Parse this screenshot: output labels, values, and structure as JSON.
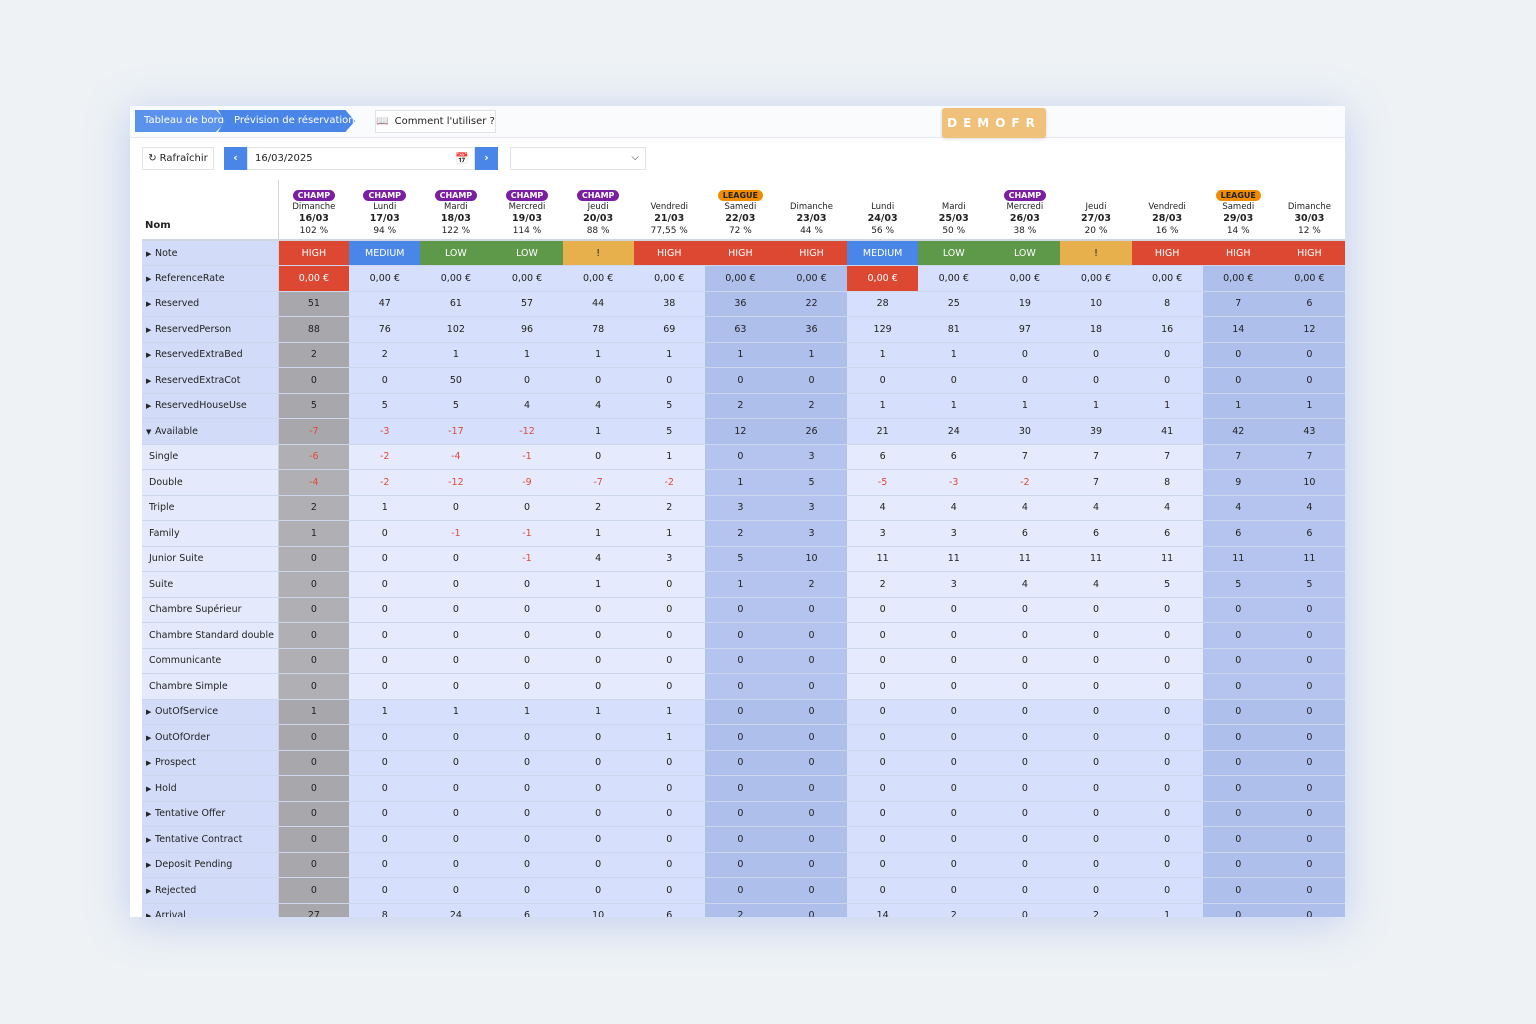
{
  "breadcrumb": [
    "Tableau de bord",
    "Prévision de réservation"
  ],
  "help_button": "Comment l'utiliser ?",
  "logo": "DEMOFR",
  "toolbar": {
    "refresh": "Rafraîchir",
    "date": "16/03/2025",
    "select_value": ""
  },
  "table": {
    "name_header": "Nom",
    "days": [
      {
        "badge": "CHAMP",
        "day": "Dimanche",
        "date": "16/03",
        "pct": "102 %",
        "note": "HIGH",
        "ref": "0,00 €"
      },
      {
        "badge": "CHAMP",
        "day": "Lundi",
        "date": "17/03",
        "pct": "94 %",
        "note": "MEDIUM",
        "ref": "0,00 €"
      },
      {
        "badge": "CHAMP",
        "day": "Mardi",
        "date": "18/03",
        "pct": "122 %",
        "note": "LOW",
        "ref": "0,00 €"
      },
      {
        "badge": "CHAMP",
        "day": "Mercredi",
        "date": "19/03",
        "pct": "114 %",
        "note": "LOW",
        "ref": "0,00 €"
      },
      {
        "badge": "CHAMP",
        "day": "Jeudi",
        "date": "20/03",
        "pct": "88 %",
        "note": "!",
        "ref": "0,00 €"
      },
      {
        "badge": "",
        "day": "Vendredi",
        "date": "21/03",
        "pct": "77,55 %",
        "note": "HIGH",
        "ref": "0,00 €"
      },
      {
        "badge": "LEAGUE",
        "day": "Samedi",
        "date": "22/03",
        "pct": "72 %",
        "note": "HIGH",
        "ref": "0,00 €"
      },
      {
        "badge": "",
        "day": "Dimanche",
        "date": "23/03",
        "pct": "44 %",
        "note": "HIGH",
        "ref": "0,00 €"
      },
      {
        "badge": "",
        "day": "Lundi",
        "date": "24/03",
        "pct": "56 %",
        "note": "MEDIUM",
        "ref": "0,00 €"
      },
      {
        "badge": "",
        "day": "Mardi",
        "date": "25/03",
        "pct": "50 %",
        "note": "LOW",
        "ref": "0,00 €"
      },
      {
        "badge": "CHAMP",
        "day": "Mercredi",
        "date": "26/03",
        "pct": "38 %",
        "note": "LOW",
        "ref": "0,00 €"
      },
      {
        "badge": "",
        "day": "Jeudi",
        "date": "27/03",
        "pct": "20 %",
        "note": "!",
        "ref": "0,00 €"
      },
      {
        "badge": "",
        "day": "Vendredi",
        "date": "28/03",
        "pct": "16 %",
        "note": "HIGH",
        "ref": "0,00 €"
      },
      {
        "badge": "LEAGUE",
        "day": "Samedi",
        "date": "29/03",
        "pct": "14 %",
        "note": "HIGH",
        "ref": "0,00 €"
      },
      {
        "badge": "",
        "day": "Dimanche",
        "date": "30/03",
        "pct": "12 %",
        "note": "HIGH",
        "ref": "0,00 €"
      }
    ],
    "rows": [
      {
        "name": "Note",
        "expander": "closed",
        "kind": "note"
      },
      {
        "name": "ReferenceRate",
        "expander": "closed",
        "kind": "ref"
      },
      {
        "name": "Reserved",
        "expander": "closed",
        "values": [
          51,
          47,
          61,
          57,
          44,
          38,
          36,
          22,
          28,
          25,
          19,
          10,
          8,
          7,
          6
        ]
      },
      {
        "name": "ReservedPerson",
        "expander": "closed",
        "values": [
          88,
          76,
          102,
          96,
          78,
          69,
          63,
          36,
          129,
          81,
          97,
          18,
          16,
          14,
          12
        ]
      },
      {
        "name": "ReservedExtraBed",
        "expander": "closed",
        "values": [
          2,
          2,
          1,
          1,
          1,
          1,
          1,
          1,
          1,
          1,
          0,
          0,
          0,
          0,
          0
        ]
      },
      {
        "name": "ReservedExtraCot",
        "expander": "closed",
        "values": [
          0,
          0,
          50,
          0,
          0,
          0,
          0,
          0,
          0,
          0,
          0,
          0,
          0,
          0,
          0
        ]
      },
      {
        "name": "ReservedHouseUse",
        "expander": "closed",
        "values": [
          5,
          5,
          5,
          4,
          4,
          5,
          2,
          2,
          1,
          1,
          1,
          1,
          1,
          1,
          1
        ]
      },
      {
        "name": "Available",
        "expander": "open",
        "values": [
          -7,
          -3,
          -17,
          -12,
          1,
          5,
          12,
          26,
          21,
          24,
          30,
          39,
          41,
          42,
          43
        ]
      },
      {
        "name": "Single",
        "sub": true,
        "values": [
          -6,
          -2,
          -4,
          -1,
          0,
          1,
          0,
          3,
          6,
          6,
          7,
          7,
          7,
          7,
          7
        ]
      },
      {
        "name": "Double",
        "sub": true,
        "values": [
          -4,
          -2,
          -12,
          -9,
          -7,
          -2,
          1,
          5,
          -5,
          -3,
          -2,
          7,
          8,
          9,
          10
        ]
      },
      {
        "name": "Triple",
        "sub": true,
        "values": [
          2,
          1,
          0,
          0,
          2,
          2,
          3,
          3,
          4,
          4,
          4,
          4,
          4,
          4,
          4
        ]
      },
      {
        "name": "Family",
        "sub": true,
        "values": [
          1,
          0,
          -1,
          -1,
          1,
          1,
          2,
          3,
          3,
          3,
          6,
          6,
          6,
          6,
          6
        ]
      },
      {
        "name": "Junior Suite",
        "sub": true,
        "values": [
          0,
          0,
          0,
          -1,
          4,
          3,
          5,
          10,
          11,
          11,
          11,
          11,
          11,
          11,
          11
        ]
      },
      {
        "name": "Suite",
        "sub": true,
        "values": [
          0,
          0,
          0,
          0,
          1,
          0,
          1,
          2,
          2,
          3,
          4,
          4,
          5,
          5,
          5
        ]
      },
      {
        "name": "Chambre Supérieur",
        "sub": true,
        "values": [
          0,
          0,
          0,
          0,
          0,
          0,
          0,
          0,
          0,
          0,
          0,
          0,
          0,
          0,
          0
        ]
      },
      {
        "name": "Chambre Standard double",
        "sub": true,
        "values": [
          0,
          0,
          0,
          0,
          0,
          0,
          0,
          0,
          0,
          0,
          0,
          0,
          0,
          0,
          0
        ]
      },
      {
        "name": "Communicante",
        "sub": true,
        "values": [
          0,
          0,
          0,
          0,
          0,
          0,
          0,
          0,
          0,
          0,
          0,
          0,
          0,
          0,
          0
        ]
      },
      {
        "name": "Chambre Simple",
        "sub": true,
        "values": [
          0,
          0,
          0,
          0,
          0,
          0,
          0,
          0,
          0,
          0,
          0,
          0,
          0,
          0,
          0
        ]
      },
      {
        "name": "OutOfService",
        "expander": "closed",
        "values": [
          1,
          1,
          1,
          1,
          1,
          1,
          0,
          0,
          0,
          0,
          0,
          0,
          0,
          0,
          0
        ]
      },
      {
        "name": "OutOfOrder",
        "expander": "closed",
        "values": [
          0,
          0,
          0,
          0,
          0,
          1,
          0,
          0,
          0,
          0,
          0,
          0,
          0,
          0,
          0
        ]
      },
      {
        "name": "Prospect",
        "expander": "closed",
        "values": [
          0,
          0,
          0,
          0,
          0,
          0,
          0,
          0,
          0,
          0,
          0,
          0,
          0,
          0,
          0
        ]
      },
      {
        "name": "Hold",
        "expander": "closed",
        "values": [
          0,
          0,
          0,
          0,
          0,
          0,
          0,
          0,
          0,
          0,
          0,
          0,
          0,
          0,
          0
        ]
      },
      {
        "name": "Tentative Offer",
        "expander": "closed",
        "values": [
          0,
          0,
          0,
          0,
          0,
          0,
          0,
          0,
          0,
          0,
          0,
          0,
          0,
          0,
          0
        ]
      },
      {
        "name": "Tentative Contract",
        "expander": "closed",
        "values": [
          0,
          0,
          0,
          0,
          0,
          0,
          0,
          0,
          0,
          0,
          0,
          0,
          0,
          0,
          0
        ]
      },
      {
        "name": "Deposit Pending",
        "expander": "closed",
        "values": [
          0,
          0,
          0,
          0,
          0,
          0,
          0,
          0,
          0,
          0,
          0,
          0,
          0,
          0,
          0
        ]
      },
      {
        "name": "Rejected",
        "expander": "closed",
        "values": [
          0,
          0,
          0,
          0,
          0,
          0,
          0,
          0,
          0,
          0,
          0,
          0,
          0,
          0,
          0
        ]
      },
      {
        "name": "Arrival",
        "expander": "closed",
        "values": [
          27,
          8,
          24,
          6,
          10,
          6,
          2,
          0,
          14,
          2,
          0,
          2,
          1,
          0,
          0
        ]
      }
    ]
  },
  "colors": {
    "high": "#dc4832",
    "medium": "#4a86e8",
    "low": "#5e994a",
    "warn": "#e8b04d",
    "champ": "#7b1fa2",
    "league": "#f08c00",
    "accent": "#4a86e8"
  },
  "icons": {
    "refresh": "refresh-icon",
    "calendar": "calendar-icon",
    "book": "book-icon"
  }
}
